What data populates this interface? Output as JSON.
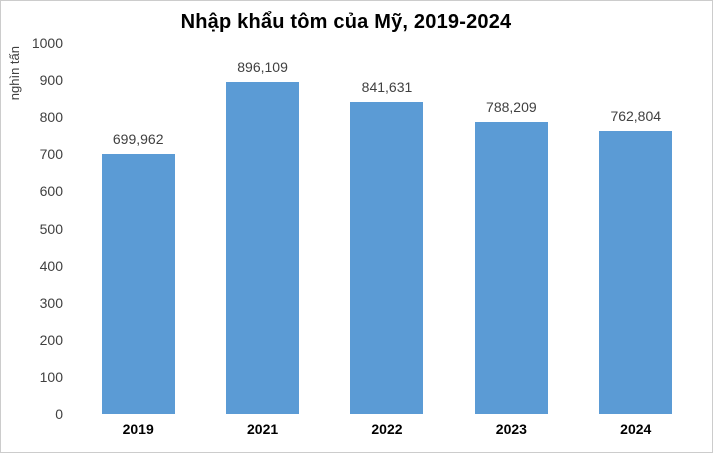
{
  "chart_data": {
    "type": "bar",
    "title": "Nhập khẩu tôm của Mỹ, 2019-2024",
    "ylabel": "nghìn tấn",
    "xlabel": "",
    "categories": [
      "2019",
      "2021",
      "2022",
      "2023",
      "2024"
    ],
    "values": [
      699962,
      896109,
      841631,
      788209,
      762804
    ],
    "value_labels": [
      "699,962",
      "896,109",
      "841,631",
      "788,209",
      "762,804"
    ],
    "ylim": [
      0,
      1000
    ],
    "y_tick_step": 100,
    "y_tick_labels": [
      "0",
      "100",
      "200",
      "300",
      "400",
      "500",
      "600",
      "700",
      "800",
      "900",
      "1000"
    ],
    "grid": false,
    "legend": false,
    "bar_color": "#5B9BD5"
  },
  "colors": {
    "bar": "#5B9BD5",
    "title_text": "#000000",
    "axis_text": "#404040",
    "background": "#FFFFFF",
    "border": "#CCCCCC"
  }
}
